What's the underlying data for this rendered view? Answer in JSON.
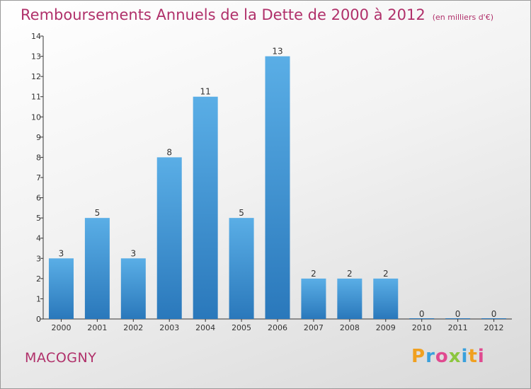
{
  "header": {
    "title": "Remboursements Annuels de la Dette de 2000 à 2012",
    "unit": "(en milliers d'€)"
  },
  "footer": {
    "city": "MACOGNY",
    "logo": {
      "letters": [
        "P",
        "r",
        "o",
        "x",
        "i",
        "t",
        "i"
      ],
      "colors": [
        "#f0a020",
        "#3aa0dc",
        "#e04a90",
        "#8cc63f",
        "#3aa0dc",
        "#f0a020",
        "#e04a90"
      ]
    }
  },
  "colors": {
    "bar_top": "#5aaee6",
    "bar_bottom": "#2a78bb",
    "title": "#b0306a"
  },
  "chart_data": {
    "type": "bar",
    "categories": [
      "2000",
      "2001",
      "2002",
      "2003",
      "2004",
      "2005",
      "2006",
      "2007",
      "2008",
      "2009",
      "2010",
      "2011",
      "2012"
    ],
    "values": [
      3,
      5,
      3,
      8,
      11,
      5,
      13,
      2,
      2,
      2,
      0,
      0,
      0
    ],
    "value_labels": [
      "3",
      "5",
      "3",
      "8",
      "11",
      "5",
      "13",
      "2",
      "2",
      "2",
      "0",
      "0",
      "0"
    ],
    "yticks": [
      "0",
      "1",
      "2",
      "3",
      "4",
      "5",
      "6",
      "7",
      "8",
      "9",
      "10",
      "11",
      "12",
      "13",
      "14"
    ],
    "ylim": [
      0,
      14
    ],
    "grid": false
  }
}
